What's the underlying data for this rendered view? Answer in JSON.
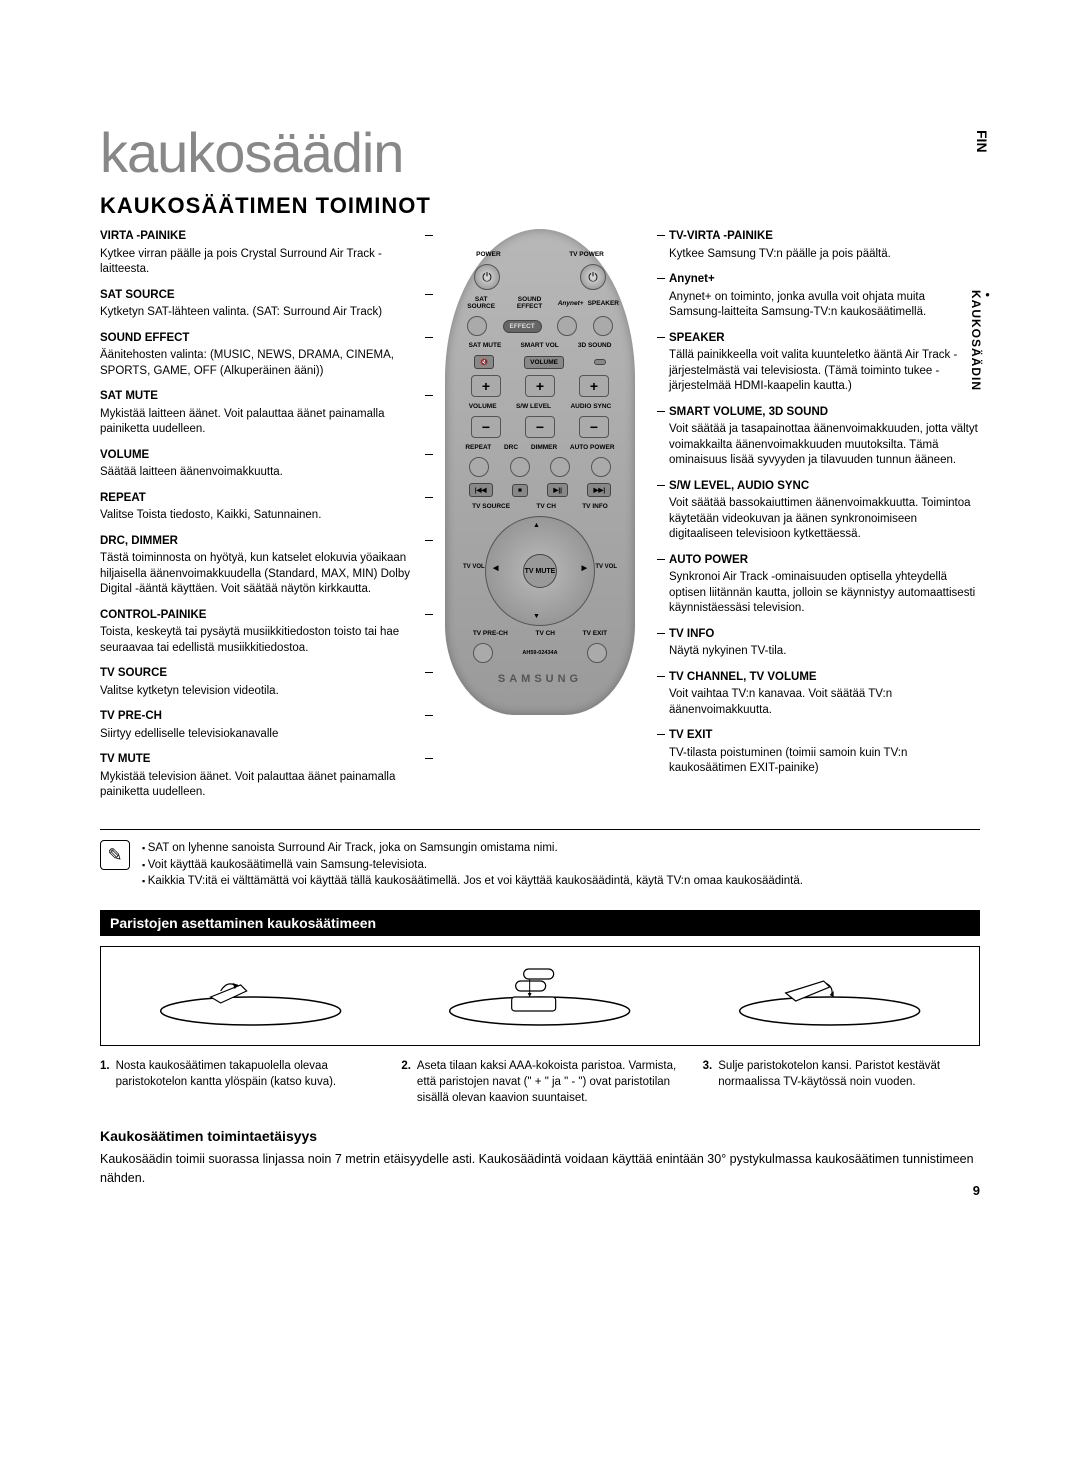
{
  "lang_tab": "FIN",
  "side_tab": "KAUKOSÄÄDIN",
  "chapter_title": "kaukosäädin",
  "section_title": "KAUKOSÄÄTIMEN TOIMINOT",
  "page_number": "9",
  "colors": {
    "text": "#000000",
    "title_gray": "#888888",
    "remote_body_top": "#b8b8b8",
    "remote_body_bottom": "#9a9a9a",
    "sub_bg": "#000000",
    "sub_fg": "#ffffff"
  },
  "left_features": [
    {
      "title": "VIRTA -PAINIKE",
      "desc": "Kytkee virran päälle ja pois Crystal Surround Air Track -laitteesta."
    },
    {
      "title": "SAT SOURCE",
      "desc": "Kytketyn SAT-lähteen valinta. (SAT: Surround Air Track)"
    },
    {
      "title": "SOUND EFFECT",
      "desc": "Äänitehosten valinta: (MUSIC, NEWS, DRAMA, CINEMA, SPORTS, GAME, OFF (Alkuperäinen ääni))"
    },
    {
      "title": "SAT MUTE",
      "desc": "Mykistää laitteen äänet. Voit palauttaa äänet painamalla painiketta uudelleen."
    },
    {
      "title": "VOLUME",
      "desc": "Säätää laitteen äänenvoimakkuutta."
    },
    {
      "title": "REPEAT",
      "desc": "Valitse Toista tiedosto, Kaikki, Satunnainen."
    },
    {
      "title": "DRC, DIMMER",
      "desc": "Tästä toiminnosta on hyötyä, kun katselet elokuvia yöaikaan hiljaisella äänenvoimakkuudella (Standard, MAX, MIN) Dolby Digital -ääntä käyttäen. Voit säätää näytön kirkkautta."
    },
    {
      "title": "CONTROL-PAINIKE",
      "desc": "Toista, keskeytä tai pysäytä musiikkitiedoston toisto tai hae seuraavaa tai edellistä musiikkitiedostoa."
    },
    {
      "title": "TV SOURCE",
      "desc": "Valitse kytketyn television videotila."
    },
    {
      "title": "TV PRE-CH",
      "desc": "Siirtyy edelliselle televisiokanavalle"
    },
    {
      "title": "TV MUTE",
      "desc": "Mykistää television äänet. Voit palauttaa äänet painamalla painiketta uudelleen."
    }
  ],
  "right_features": [
    {
      "title": "TV-VIRTA -PAINIKE",
      "desc": "Kytkee Samsung TV:n päälle ja pois päältä."
    },
    {
      "title": "Anynet+",
      "desc": "Anynet+ on toiminto, jonka avulla voit ohjata muita Samsung-laitteita Samsung-TV:n kaukosäätimellä."
    },
    {
      "title": "SPEAKER",
      "desc": "Tällä painikkeella voit valita kuunteletko ääntä Air Track -järjestelmästä vai televisiosta. (Tämä toiminto tukee -järjestelmää HDMI-kaapelin kautta.)"
    },
    {
      "title": "SMART VOLUME, 3D SOUND",
      "desc": "Voit säätää ja tasapainottaa äänenvoimakkuuden, jotta vältyt voimakkailta äänenvoimakkuuden muutoksilta. Tämä ominaisuus lisää syvyyden ja tilavuuden tunnun ääneen."
    },
    {
      "title": "S/W LEVEL, AUDIO SYNC",
      "desc": "Voit säätää bassokaiuttimen äänenvoimakkuutta. Toimintoa käytetään videokuvan ja äänen synkronoimiseen digitaaliseen televisioon kytkettäessä."
    },
    {
      "title": "AUTO POWER",
      "desc": "Synkronoi Air Track -ominaisuuden optisella yhteydellä optisen liitännän kautta, jolloin se käynnistyy automaattisesti käynnistäessäsi television."
    },
    {
      "title": "TV INFO",
      "desc": "Näytä nykyinen TV-tila."
    },
    {
      "title": "TV CHANNEL, TV VOLUME",
      "desc": "Voit vaihtaa TV:n kanavaa. Voit säätää TV:n äänenvoimakkuutta."
    },
    {
      "title": "TV EXIT",
      "desc": "TV-tilasta poistuminen (toimii samoin kuin TV:n kaukosäätimen EXIT-painike)"
    }
  ],
  "remote": {
    "labels": {
      "power": "POWER",
      "tv_power": "TV POWER",
      "sat_source": "SAT SOURCE",
      "sound_effect": "SOUND EFFECT",
      "anynet": "Anynet+",
      "speaker": "SPEAKER",
      "sat_mute": "SAT MUTE",
      "smart": "SMART VOL",
      "sound3d": "3D SOUND",
      "volume_btn": "VOLUME",
      "volume": "VOLUME",
      "sw_level": "S/W LEVEL",
      "audio_sync": "AUDIO SYNC",
      "repeat": "REPEAT",
      "drc": "DRC",
      "dimmer": "DIMMER",
      "auto_power": "AUTO POWER",
      "tv_source": "TV SOURCE",
      "tv_info": "TV INFO",
      "tv_ch": "TV CH",
      "tv_vol": "TV VOL",
      "tv_mute": "TV MUTE",
      "tv_pre_ch": "TV PRE-CH",
      "tv_exit": "TV EXIT",
      "brand": "SAMSUNG",
      "model": "AH59-02434A"
    },
    "glyphs": {
      "power": "⏻",
      "mute": "🔇",
      "plus": "+",
      "minus": "−",
      "prev": "|◀◀",
      "stop": "■",
      "playpause": "▶||",
      "next": "▶▶|",
      "up": "▲",
      "down": "▼",
      "left": "◀",
      "right": "▶",
      "info": "ℹ"
    }
  },
  "notes": [
    "SAT on lyhenne sanoista Surround Air Track, joka on Samsungin omistama nimi.",
    "Voit käyttää kaukosäätimellä vain Samsung-televisiota.",
    "Kaikkia TV:itä ei välttämättä voi käyttää tällä kaukosäätimellä. Jos et voi käyttää kaukosäädintä, käytä TV:n omaa kaukosäädintä."
  ],
  "battery_heading": "Paristojen asettaminen kaukosäätimeen",
  "battery_steps": [
    {
      "num": "1.",
      "text": "Nosta kaukosäätimen takapuolella olevaa paristokotelon kantta ylöspäin (katso kuva)."
    },
    {
      "num": "2.",
      "text": "Aseta tilaan kaksi AAA-kokoista paristoa. Varmista, että paristojen navat (\" + \" ja \" - \") ovat paristotilan sisällä olevan kaavion suuntaiset."
    },
    {
      "num": "3.",
      "text": "Sulje paristokotelon kansi. Paristot kestävät normaalissa TV-käytössä noin vuoden."
    }
  ],
  "range_heading": "Kaukosäätimen toimintaetäisyys",
  "range_text": "Kaukosäädin toimii suorassa linjassa noin 7 metrin etäisyydelle asti. Kaukosäädintä voidaan käyttää enintään 30° pystykulmassa kaukosäätimen tunnistimeen nähden."
}
